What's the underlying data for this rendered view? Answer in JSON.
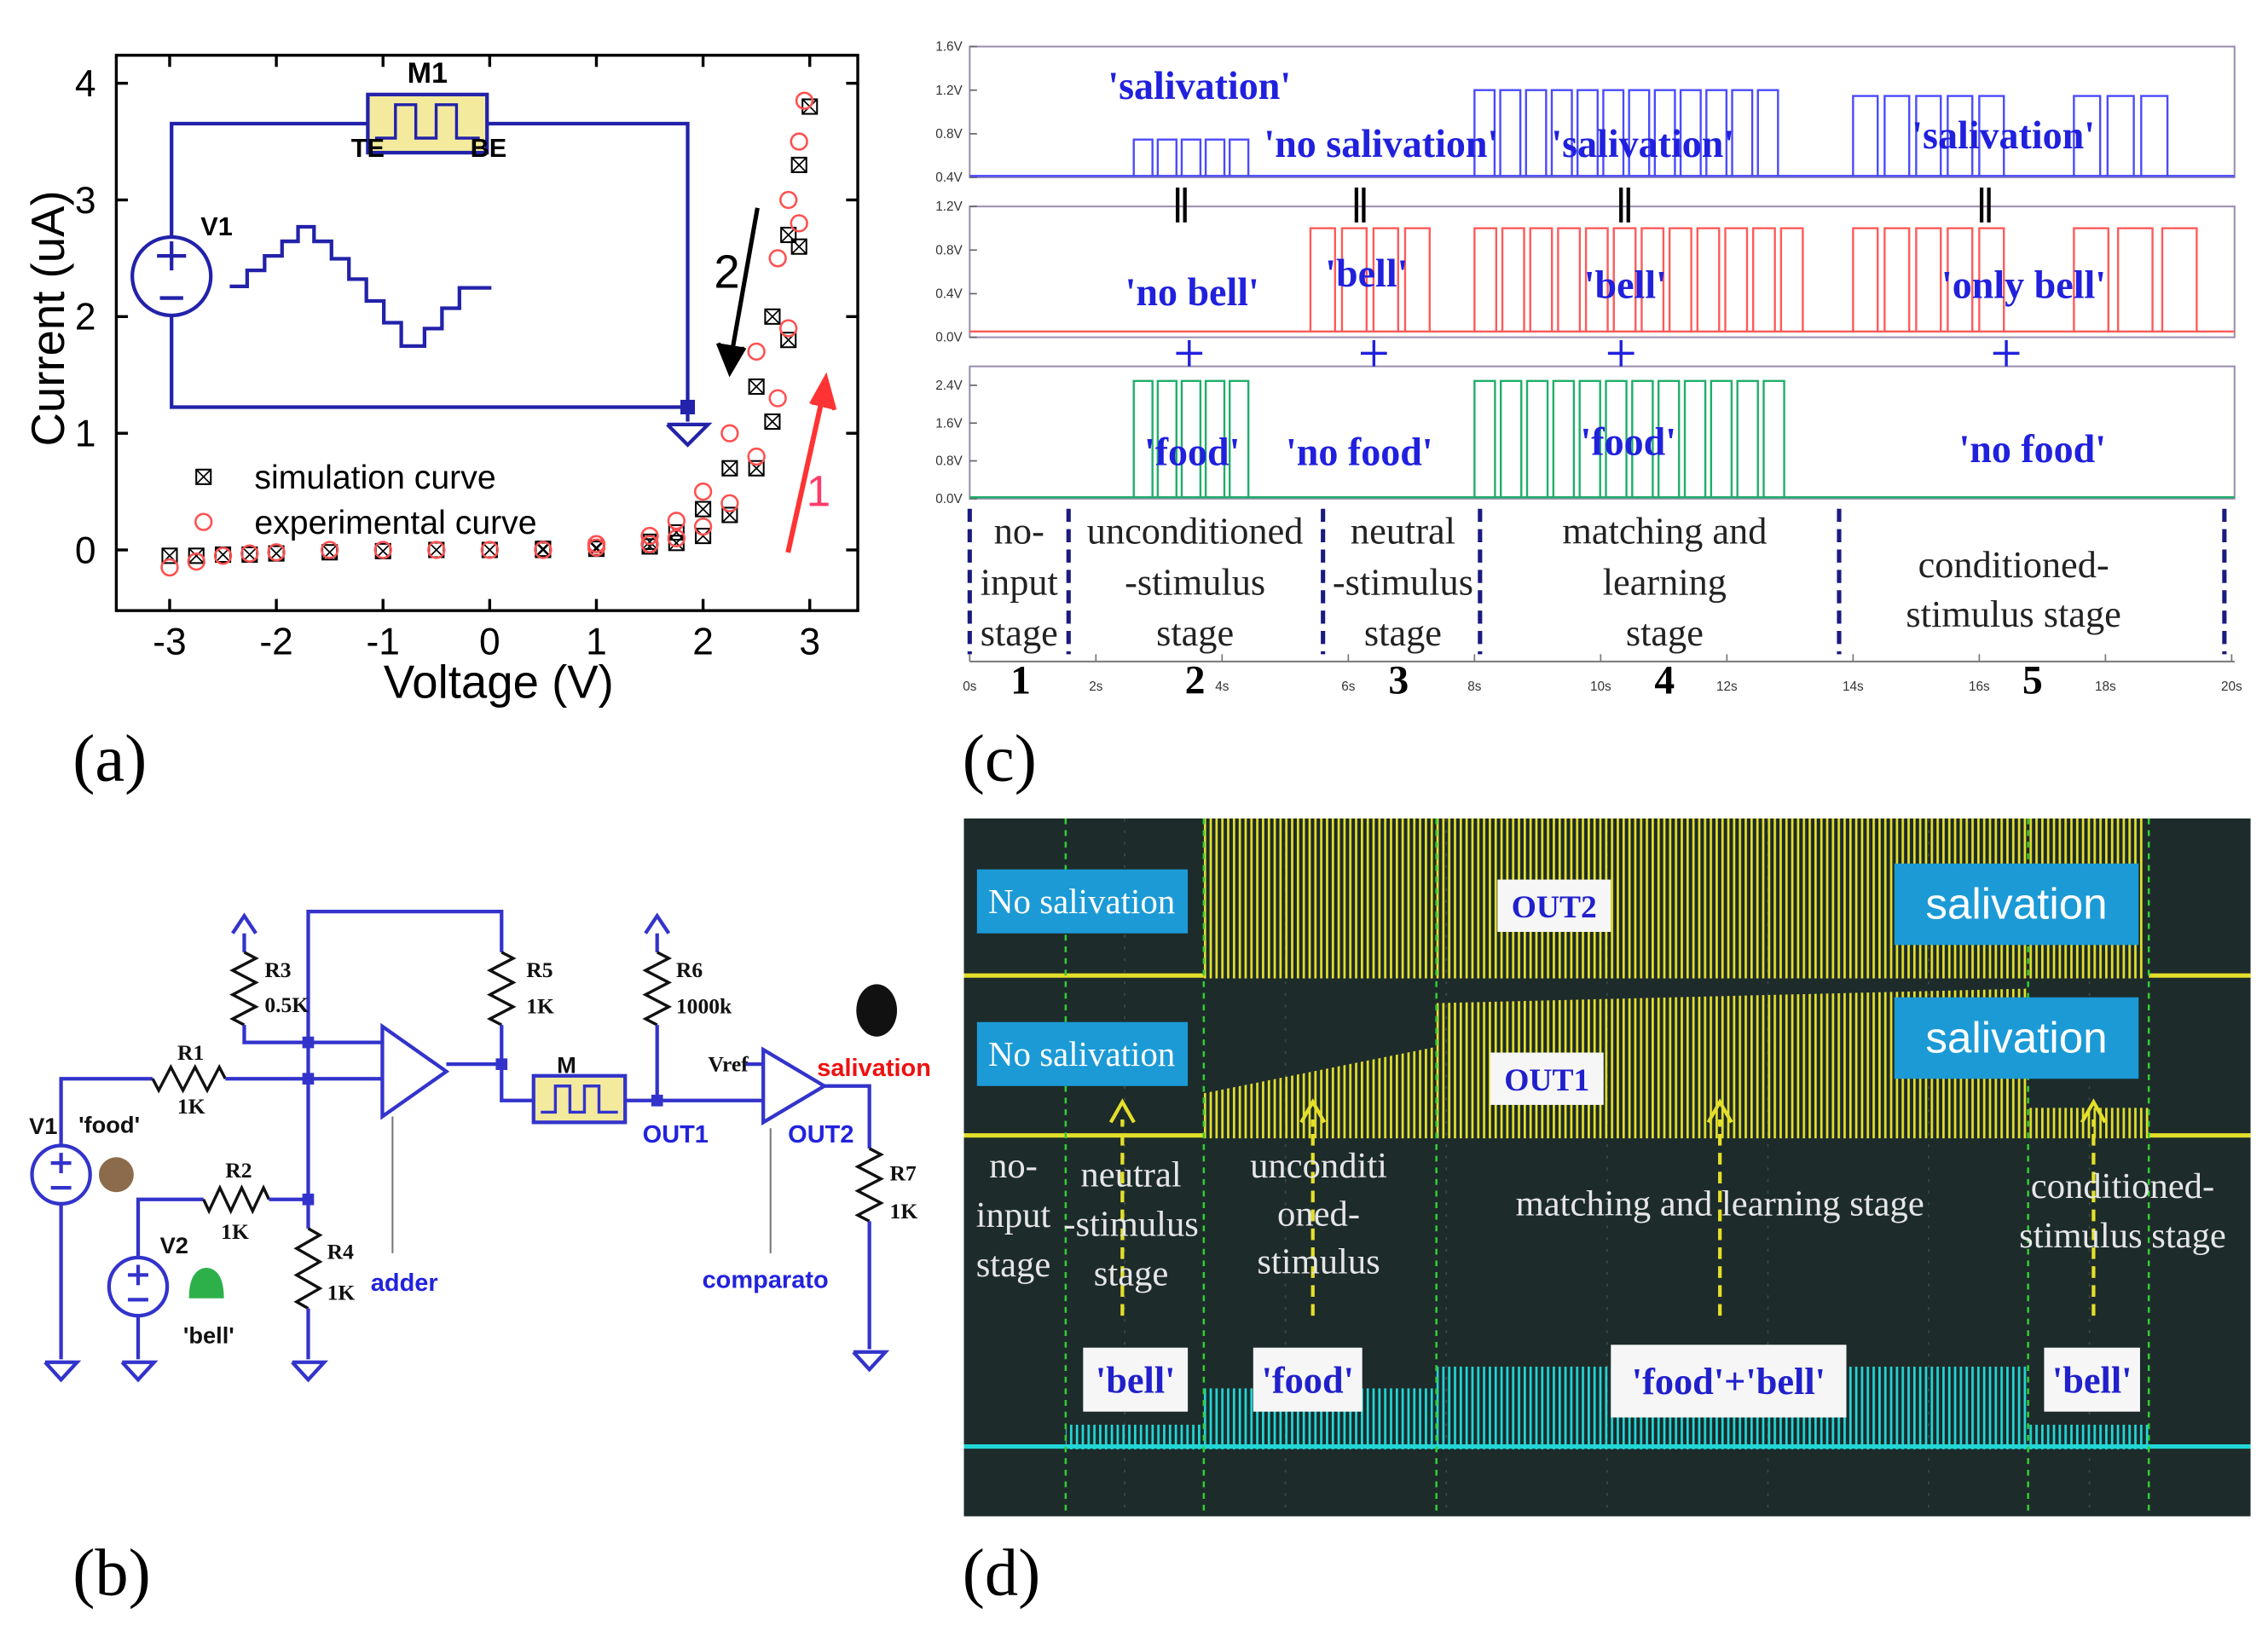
{
  "chart_data": {
    "type": "scatter",
    "xlabel": "Voltage (V)",
    "ylabel": "Current (uA)",
    "xlim": [
      -3.5,
      3.45
    ],
    "ylim": [
      -0.52,
      4.24
    ],
    "xticks": [
      -3,
      -2,
      -1,
      0,
      1,
      2,
      3
    ],
    "yticks": [
      0,
      1,
      2,
      3,
      4
    ],
    "legend": "lower left",
    "series": [
      {
        "name": "simulation curve",
        "color": "#000000",
        "marker": "square-x",
        "x": [
          -3,
          -2.75,
          -2.5,
          -2.25,
          -2,
          -1.5,
          -1,
          -0.5,
          0,
          0.5,
          1,
          1.5,
          1.75,
          2,
          2.25,
          2.5,
          2.65,
          2.8,
          2.9,
          3,
          2.9,
          2.8,
          2.65,
          2.5,
          2.25,
          2,
          1.75,
          1.5,
          1,
          0.5
        ],
        "values": [
          -0.05,
          -0.05,
          -0.04,
          -0.04,
          -0.03,
          -0.02,
          -0.01,
          0,
          0,
          0,
          0.01,
          0.03,
          0.06,
          0.12,
          0.3,
          0.7,
          1.1,
          1.8,
          2.6,
          3.8,
          3.3,
          2.7,
          2.0,
          1.4,
          0.7,
          0.35,
          0.15,
          0.07,
          0.02,
          0.01
        ]
      },
      {
        "name": "experimental curve",
        "color": "#ff5050",
        "marker": "circle",
        "x": [
          -3,
          -2.75,
          -2.5,
          -2.25,
          -2,
          -1.5,
          -1,
          -0.5,
          0,
          0.5,
          1,
          1.5,
          1.75,
          2,
          2.25,
          2.5,
          2.7,
          2.8,
          2.9,
          2.95,
          2.9,
          2.8,
          2.7,
          2.5,
          2.25,
          2,
          1.75,
          1.5,
          1
        ],
        "values": [
          -0.15,
          -0.1,
          -0.05,
          -0.03,
          -0.02,
          0,
          0,
          0,
          0,
          0,
          0.02,
          0.05,
          0.1,
          0.2,
          0.4,
          0.8,
          1.3,
          1.9,
          2.8,
          3.85,
          3.5,
          3.0,
          2.5,
          1.7,
          1.0,
          0.5,
          0.25,
          0.12,
          0.05
        ]
      }
    ],
    "annotations": [
      "2",
      "1"
    ],
    "inset": {
      "labels": [
        "M1",
        "TE",
        "BE",
        "V1"
      ]
    }
  },
  "panel_labels": [
    "(a)",
    "(b)",
    "(c)",
    "(d)"
  ],
  "circuit": {
    "labels": [
      "R3",
      "0.5K",
      "R5",
      "1K",
      "R6",
      "1000k",
      "R1",
      "1K",
      "'food'",
      "V1",
      "R2",
      "1K",
      "V2",
      "'bell'",
      "R4",
      "1K",
      "adder",
      "M",
      "OUT1",
      "Vref",
      "salivation",
      "OUT2",
      "R7",
      "1K",
      "comparato"
    ]
  },
  "timing": {
    "top": {
      "yticks": [
        "1.6V",
        "1.2V",
        "0.8V",
        "0.4V"
      ],
      "labels": [
        "'salivation'",
        "'no salivation'",
        "'salivation'",
        "'salivation'"
      ]
    },
    "middle": {
      "yticks": [
        "1.2V",
        "0.8V",
        "0.4V",
        "0.0V"
      ],
      "labels": [
        "'no bell'",
        "'bell'",
        "'bell'",
        "'only bell'"
      ]
    },
    "bottom": {
      "yticks": [
        "2.4V",
        "1.6V",
        "0.8V",
        "0.0V"
      ],
      "labels": [
        "'food'",
        "'no food'",
        "'food'",
        "'no food'"
      ]
    },
    "stages": [
      [
        "no-",
        "input",
        "stage"
      ],
      [
        "unconditioned",
        "-stimulus",
        "stage"
      ],
      [
        "neutral",
        "-stimulus",
        "stage"
      ],
      [
        "matching and",
        "learning",
        "stage"
      ],
      [
        "conditioned-",
        "stimulus stage"
      ]
    ],
    "stage_numbers": [
      "1",
      "2",
      "3",
      "4",
      "5"
    ],
    "xticks": [
      "0s",
      "2s",
      "4s",
      "6s",
      "8s",
      "10s",
      "12s",
      "14s",
      "16s",
      "18s",
      "20s"
    ]
  },
  "scope": {
    "no_salivation": [
      "No salivation",
      "No salivation"
    ],
    "salivation": [
      "salivation",
      "salivation"
    ],
    "channels": [
      "OUT2",
      "OUT1"
    ],
    "stages": [
      [
        "no-",
        "input",
        "stage"
      ],
      [
        "neutral",
        "-stimulus",
        "stage"
      ],
      [
        "unconditi",
        "oned-",
        "stimulus"
      ],
      [
        "matching and learning stage"
      ],
      [
        "conditioned-",
        "stimulus stage"
      ]
    ],
    "inputs": [
      "'bell'",
      "'food'",
      "'food'+'bell'",
      "'bell'"
    ]
  }
}
